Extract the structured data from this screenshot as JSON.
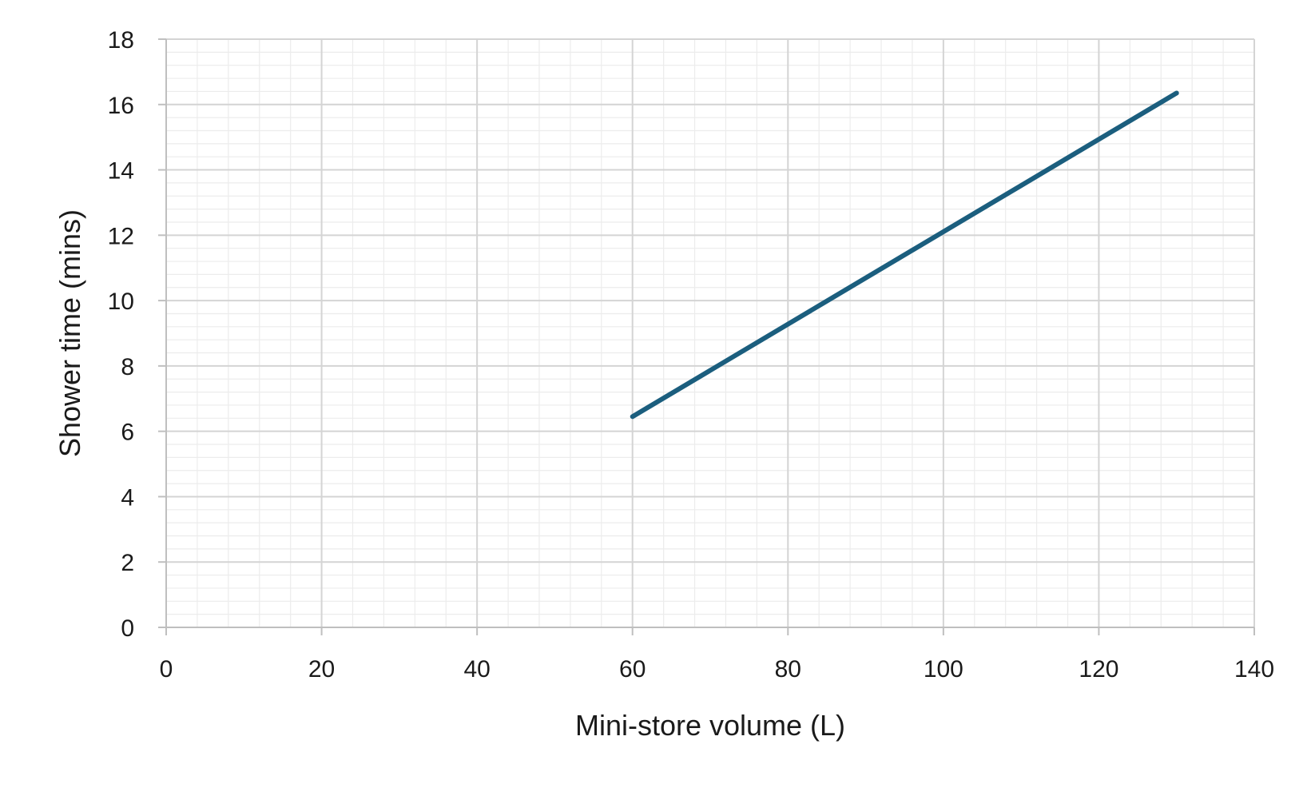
{
  "chart_data": {
    "type": "line",
    "title": "",
    "xlabel": "Mini-store volume (L)",
    "ylabel": "Shower time (mins)",
    "xlim": [
      0,
      140
    ],
    "ylim": [
      0,
      18
    ],
    "x_ticks": [
      0,
      20,
      40,
      60,
      80,
      100,
      120,
      140
    ],
    "y_ticks": [
      0,
      2,
      4,
      6,
      8,
      10,
      12,
      14,
      16,
      18
    ],
    "x_minor_step": 4,
    "y_minor_step": 0.4,
    "grid": true,
    "legend": "none",
    "series": [
      {
        "color": "#1b5e7e",
        "x": [
          60,
          130
        ],
        "y": [
          6.45,
          16.35
        ]
      }
    ]
  }
}
